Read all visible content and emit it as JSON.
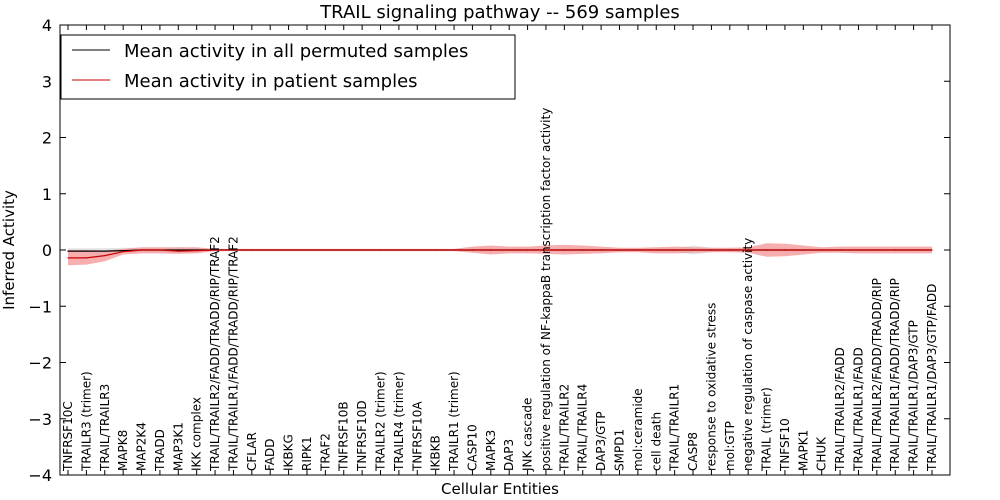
{
  "chart_data": {
    "type": "line",
    "title": "TRAIL signaling pathway -- 569 samples",
    "xlabel": "Cellular Entities",
    "ylabel": "Inferred Activity",
    "ylim": [
      -4,
      4
    ],
    "yticks": [
      "4",
      "3",
      "2",
      "1",
      "0",
      "−1",
      "−2",
      "−3",
      "−4"
    ],
    "yticks_values": [
      4,
      3,
      2,
      1,
      0,
      -1,
      -2,
      -3,
      -4
    ],
    "grid": false,
    "legend_position": "top-left",
    "categories": [
      "TNFRSF10C",
      "TRAILR3 (trimer)",
      "TRAIL/TRAILR3",
      "MAPK8",
      "MAP2K4",
      "TRADD",
      "MAP3K1",
      "IKK complex",
      "TRAIL/TRAILR2/FADD/TRADD/RIP/TRAF2",
      "TRAIL/TRAILR1/FADD/TRADD/RIP/TRAF2",
      "CFLAR",
      "FADD",
      "IKBKG",
      "RIPK1",
      "TRAF2",
      "TNFRSF10B",
      "TNFRSF10D",
      "TRAILR2 (trimer)",
      "TRAILR4 (trimer)",
      "TNFRSF10A",
      "IKBKB",
      "TRAILR1 (trimer)",
      "CASP10",
      "MAPK3",
      "DAP3",
      "JNK cascade",
      "positive regulation of NF-kappaB transcription factor activity",
      "TRAIL/TRAILR2",
      "TRAIL/TRAILR4",
      "DAP3/GTP",
      "SMPD1",
      "mol:ceramide",
      "cell death",
      "TRAIL/TRAILR1",
      "CASP8",
      "response to oxidative stress",
      "mol:GTP",
      "negative regulation of caspase activity",
      "TRAIL (trimer)",
      "TNFSF10",
      "MAPK1",
      "CHUK",
      "TRAIL/TRAILR2/FADD",
      "TRAIL/TRAILR1/FADD",
      "TRAIL/TRAILR2/FADD/TRADD/RIP",
      "TRAIL/TRAILR1/FADD/TRADD/RIP",
      "TRAIL/TRAILR1/DAP3/GTP",
      "TRAIL/TRAILR1/DAP3/GTP/FADD"
    ],
    "series": [
      {
        "name": "Mean activity in all permuted samples",
        "color": "#000000",
        "values": [
          -0.02,
          -0.02,
          -0.02,
          -0.01,
          0,
          0,
          0,
          0,
          0,
          0,
          0,
          0,
          0,
          0,
          0,
          0,
          0,
          0,
          0,
          0,
          0,
          0,
          0,
          0,
          0,
          0,
          0,
          0,
          0,
          0,
          0,
          0,
          0,
          0,
          0,
          0,
          0,
          0,
          0,
          0,
          0,
          0,
          0,
          0,
          0,
          0,
          0,
          0
        ],
        "band_low": [
          -0.03,
          -0.03,
          -0.03,
          -0.04,
          -0.04,
          -0.03,
          -0.05,
          -0.04,
          -0.01,
          -0.01,
          -0.01,
          -0.01,
          -0.01,
          -0.01,
          -0.01,
          -0.01,
          -0.01,
          -0.01,
          -0.01,
          -0.01,
          -0.01,
          -0.01,
          -0.03,
          -0.04,
          -0.03,
          -0.03,
          -0.03,
          -0.03,
          -0.04,
          -0.03,
          -0.02,
          -0.02,
          -0.03,
          -0.03,
          -0.08,
          -0.04,
          -0.03,
          -0.03,
          -0.04,
          -0.04,
          -0.04,
          -0.03,
          -0.02,
          -0.02,
          -0.02,
          -0.02,
          -0.02,
          -0.02
        ],
        "band_high": [
          0.03,
          0.03,
          0.03,
          0.04,
          0.04,
          0.03,
          0.05,
          0.04,
          0.01,
          0.01,
          0.01,
          0.01,
          0.01,
          0.01,
          0.01,
          0.01,
          0.01,
          0.01,
          0.01,
          0.01,
          0.01,
          0.01,
          0.03,
          0.04,
          0.03,
          0.03,
          0.03,
          0.03,
          0.04,
          0.03,
          0.02,
          0.02,
          0.03,
          0.03,
          0.08,
          0.04,
          0.03,
          0.03,
          0.04,
          0.04,
          0.04,
          0.03,
          0.02,
          0.02,
          0.02,
          0.02,
          0.02,
          0.02
        ]
      },
      {
        "name": "Mean activity in patient samples",
        "color": "#cc0000",
        "band_color": "#f4a0a0",
        "values": [
          -0.14,
          -0.14,
          -0.1,
          -0.03,
          0,
          0,
          -0.02,
          -0.01,
          0,
          0,
          0,
          0,
          0,
          0,
          0,
          0,
          0,
          0,
          0,
          0,
          0,
          0,
          0,
          0,
          0,
          0,
          0,
          0,
          0,
          0,
          0,
          0,
          0,
          0,
          0,
          0,
          0,
          0,
          0,
          0,
          0,
          0,
          0,
          0,
          0,
          0,
          0,
          0
        ],
        "band_low": [
          -0.27,
          -0.26,
          -0.2,
          -0.08,
          -0.06,
          -0.06,
          -0.07,
          -0.06,
          -0.02,
          -0.02,
          -0.02,
          -0.02,
          -0.02,
          -0.02,
          -0.02,
          -0.02,
          -0.02,
          -0.02,
          -0.02,
          -0.02,
          -0.02,
          -0.02,
          -0.05,
          -0.08,
          -0.06,
          -0.06,
          -0.07,
          -0.08,
          -0.07,
          -0.06,
          -0.04,
          -0.04,
          -0.06,
          -0.06,
          -0.05,
          -0.04,
          -0.04,
          -0.05,
          -0.12,
          -0.11,
          -0.08,
          -0.05,
          -0.05,
          -0.06,
          -0.06,
          -0.06,
          -0.06,
          -0.06
        ],
        "band_high": [
          0.0,
          0.0,
          -0.01,
          0.02,
          0.05,
          0.05,
          0.05,
          0.05,
          0.02,
          0.02,
          0.02,
          0.02,
          0.02,
          0.02,
          0.02,
          0.02,
          0.02,
          0.02,
          0.02,
          0.02,
          0.02,
          0.02,
          0.06,
          0.08,
          0.06,
          0.06,
          0.08,
          0.09,
          0.08,
          0.06,
          0.04,
          0.04,
          0.05,
          0.06,
          0.05,
          0.04,
          0.04,
          0.05,
          0.12,
          0.11,
          0.08,
          0.05,
          0.06,
          0.06,
          0.06,
          0.06,
          0.06,
          0.06
        ]
      }
    ]
  }
}
